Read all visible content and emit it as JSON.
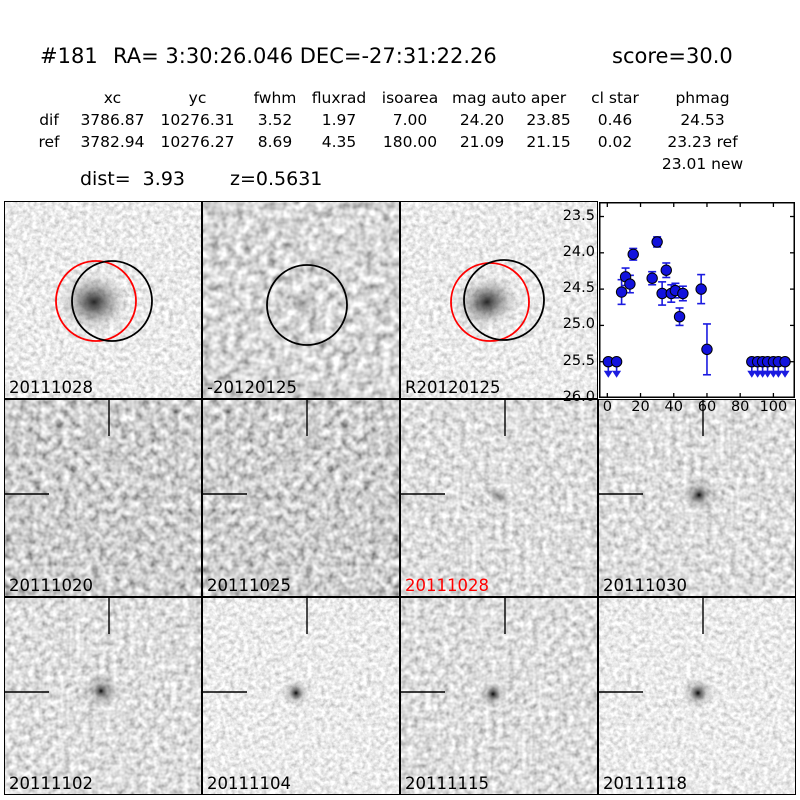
{
  "header": {
    "id": "#181",
    "radec": "RA= 3:30:26.046 DEC=-27:31:22.26",
    "score": "score=30.0"
  },
  "table": {
    "headers": [
      "xc",
      "yc",
      "fwhm",
      "fluxrad",
      "isoarea",
      "mag auto",
      "aper",
      "cl star",
      "phmag"
    ],
    "rows": [
      {
        "label": "dif",
        "xc": "3786.87",
        "yc": "10276.31",
        "fwhm": "3.52",
        "fluxrad": "1.97",
        "isoarea": "7.00",
        "mag_auto": "24.20",
        "aper": "23.85",
        "cl_star": "0.46",
        "phmag": "24.53"
      },
      {
        "label": "ref",
        "xc": "3782.94",
        "yc": "10276.27",
        "fwhm": "8.69",
        "fluxrad": "4.35",
        "isoarea": "180.00",
        "mag_auto": "21.09",
        "aper": "21.15",
        "cl_star": "0.02",
        "phmag": "23.23 ref"
      }
    ],
    "extra_phmag": "23.01 new",
    "dist": "dist=  3.93",
    "z": "z=0.5631"
  },
  "cutouts": [
    {
      "label": "20111028",
      "label_style": "color:#000000"
    },
    {
      "label": "-20120125",
      "label_style": "color:#000000"
    },
    {
      "label": "R20120125",
      "label_style": "color:#000000"
    },
    {
      "label": "20111020",
      "label_style": "color:#000000"
    },
    {
      "label": "20111025",
      "label_style": "color:#000000"
    },
    {
      "label": "20111028",
      "label_style": "color:#ff0000"
    },
    {
      "label": "20111030",
      "label_style": "color:#000000"
    },
    {
      "label": "20111102",
      "label_style": "color:#000000"
    },
    {
      "label": "20111104",
      "label_style": "color:#000000"
    },
    {
      "label": "20111115",
      "label_style": "color:#000000"
    },
    {
      "label": "20111118",
      "label_style": "color:#000000"
    }
  ],
  "chart_data": {
    "type": "scatter",
    "title": "",
    "xlabel": "",
    "ylabel": "",
    "x_ticks": [
      0,
      20,
      40,
      60,
      80,
      100
    ],
    "y_ticks": [
      23.5,
      24.0,
      24.5,
      25.0,
      25.5,
      26.0
    ],
    "xlim": [
      -5,
      113
    ],
    "ylim": [
      26.0,
      23.3
    ],
    "y_inverted": true,
    "grid": false,
    "marker_color": "#1212dd",
    "errorbar_color": "#1b1be0",
    "series": [
      {
        "name": "detections",
        "points": [
          [
            8.6,
            24.54,
            0.17
          ],
          [
            11,
            24.33,
            0.12
          ],
          [
            13.6,
            24.43,
            0.12
          ],
          [
            15.6,
            24.02,
            0.08
          ],
          [
            27,
            24.35,
            0.09
          ],
          [
            30,
            23.85,
            0.07
          ],
          [
            33,
            24.56,
            0.16
          ],
          [
            35.5,
            24.24,
            0.1
          ],
          [
            38.5,
            24.56,
            0.12
          ],
          [
            41,
            24.52,
            0.1
          ],
          [
            43.5,
            24.88,
            0.12
          ],
          [
            45.5,
            24.56,
            0.1
          ],
          [
            56.5,
            24.5,
            0.2
          ],
          [
            60,
            25.33,
            0.35
          ]
        ]
      },
      {
        "name": "upper_limits",
        "mag": 25.5,
        "x": [
          0.6,
          5.6,
          87,
          90.5,
          93.5,
          96.5,
          100,
          103,
          107
        ]
      }
    ]
  }
}
